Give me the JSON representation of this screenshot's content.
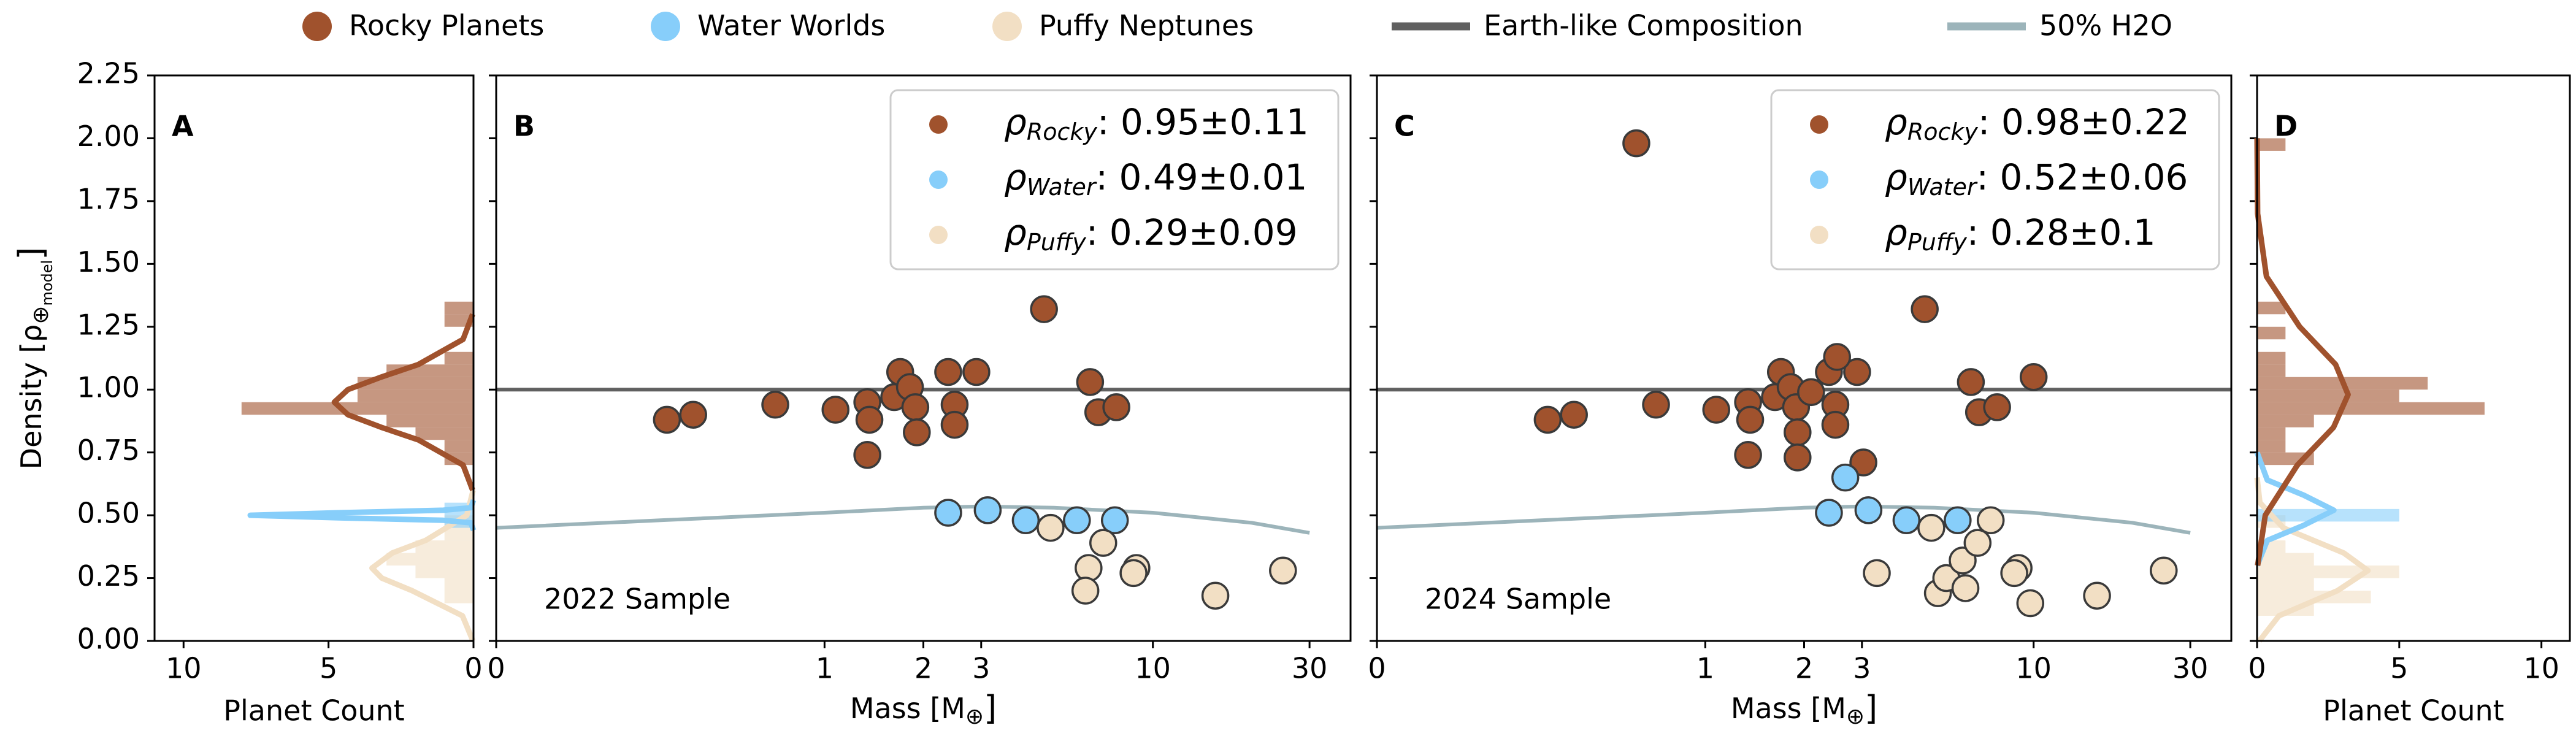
{
  "legend": {
    "items": [
      {
        "name": "Rocky Planets",
        "color": "#a0522d",
        "marker": "circle"
      },
      {
        "name": "Water Worlds",
        "color": "#87cefa",
        "marker": "circle"
      },
      {
        "name": "Puffy Neptunes",
        "color": "#f2dfc4",
        "marker": "circle"
      },
      {
        "name": "Earth-like Composition",
        "color": "#606060",
        "marker": "line"
      },
      {
        "name": "50% H2O",
        "color": "#9cb4ba",
        "marker": "line"
      }
    ]
  },
  "chart_data": [
    {
      "type": "histogram",
      "orientation": "horizontal",
      "panel": "A",
      "xlabel": "Planet Count",
      "xlim": [
        11,
        0
      ],
      "xticks": [
        10,
        5,
        0
      ],
      "ylabel": {
        "main": "Density [ρ",
        "sub": "⊕",
        "subsub": "model",
        "end": "]"
      },
      "ylim": [
        0,
        2.25
      ],
      "yticks": [
        {
          "value": 0,
          "label": "0.00"
        },
        {
          "value": 0.25,
          "label": "0.25"
        },
        {
          "value": 0.5,
          "label": "0.50"
        },
        {
          "value": 0.75,
          "label": "0.75"
        },
        {
          "value": 1,
          "label": "1.00"
        },
        {
          "value": 1.25,
          "label": "1.25"
        },
        {
          "value": 1.5,
          "label": "1.50"
        },
        {
          "value": 1.75,
          "label": "1.75"
        },
        {
          "value": 2,
          "label": "2.00"
        },
        {
          "value": 2.25,
          "label": "2.25"
        }
      ],
      "series": [
        {
          "color": "#f2dfc4",
          "bins": [
            0.15,
            0.2,
            0.25,
            0.3,
            0.35,
            0.4,
            0.45,
            0.5
          ],
          "counts": [
            1,
            1,
            2,
            3,
            2,
            1,
            1
          ],
          "kde_density": [
            0,
            0.1,
            0.2,
            0.25,
            0.29,
            0.35,
            0.4,
            0.5,
            0.6
          ],
          "kde_count": [
            0.02,
            0.38,
            2.12,
            3.16,
            3.5,
            2.8,
            1.65,
            0.23,
            0.01
          ]
        },
        {
          "color": "#87cefa",
          "bins": [
            0.45,
            0.5,
            0.55
          ],
          "counts": [
            1,
            1
          ],
          "kde_density": [
            0.44,
            0.47,
            0.48,
            0.49,
            0.5,
            0.51,
            0.52,
            0.53,
            0.56
          ],
          "kde_count": [
            0,
            0.09,
            1.04,
            4.67,
            7.7,
            4.67,
            1.04,
            0.09,
            0
          ]
        },
        {
          "color": "#a0522d",
          "bins": [
            0.7,
            0.75,
            0.8,
            0.85,
            0.9,
            0.95,
            1.0,
            1.05,
            1.1,
            1.15,
            1.2,
            1.25,
            1.3,
            1.35
          ],
          "counts": [
            1,
            1,
            2,
            3,
            8,
            4,
            4,
            3,
            1,
            0,
            0,
            1,
            1
          ],
          "kde_density": [
            0.6,
            0.7,
            0.8,
            0.85,
            0.9,
            0.95,
            1.0,
            1.05,
            1.1,
            1.2,
            1.3
          ],
          "kde_count": [
            0.03,
            0.36,
            1.9,
            3.18,
            4.33,
            4.8,
            4.33,
            3.18,
            1.9,
            0.36,
            0.03
          ]
        }
      ]
    },
    {
      "type": "scatter",
      "panel": "B",
      "annotation": "2022 Sample",
      "xlabel": {
        "main": "Mass [M",
        "sub": "⊕",
        "end": "]"
      },
      "xscale": "symlog",
      "linthresh": 1,
      "xlim": [
        0,
        40
      ],
      "xticks": [
        0,
        1,
        2,
        3,
        10,
        30
      ],
      "lines": [
        {
          "color": "#606060",
          "x": [
            0,
            40
          ],
          "values": [
            1,
            1
          ]
        },
        {
          "color": "#9cb4ba",
          "x": [
            0,
            0.5,
            1,
            2,
            3,
            5,
            10,
            20,
            30
          ],
          "values": [
            0.45,
            0.48,
            0.51,
            0.53,
            0.535,
            0.53,
            0.51,
            0.47,
            0.43
          ]
        }
      ],
      "series": [
        {
          "color": "#a0522d",
          "label": {
            "symbol": "ρ",
            "sub": "Rocky",
            "text": ": 0.95±0.11"
          },
          "x": [
            0.52,
            0.6,
            0.85,
            1.08,
            1.35,
            1.35,
            1.37,
            1.63,
            1.7,
            1.82,
            1.89,
            1.91,
            2.38,
            2.49,
            2.49,
            2.9,
            4.66,
            6.44,
            6.82,
            7.74
          ],
          "values": [
            0.88,
            0.9,
            0.94,
            0.92,
            0.95,
            0.74,
            0.88,
            0.97,
            1.07,
            1.01,
            0.93,
            0.83,
            1.07,
            0.94,
            0.86,
            1.07,
            1.32,
            1.03,
            0.91,
            0.93
          ]
        },
        {
          "color": "#87cefa",
          "label": {
            "symbol": "ρ",
            "sub": "Water",
            "text": ": 0.49±0.01"
          },
          "x": [
            2.38,
            3.14,
            4.1,
            5.87,
            7.66
          ],
          "values": [
            0.51,
            0.52,
            0.48,
            0.48,
            0.48
          ]
        },
        {
          "color": "#f2dfc4",
          "label": {
            "symbol": "ρ",
            "sub": "Puffy",
            "text": ": 0.29±0.09"
          },
          "x": [
            4.88,
            7.06,
            6.37,
            6.23,
            8.91,
            8.73,
            15.5,
            24.9
          ],
          "values": [
            0.45,
            0.39,
            0.29,
            0.2,
            0.29,
            0.27,
            0.18,
            0.28
          ]
        }
      ]
    },
    {
      "type": "scatter",
      "panel": "C",
      "annotation": "2024 Sample",
      "xlabel": {
        "main": "Mass [M",
        "sub": "⊕",
        "end": "]"
      },
      "xscale": "symlog",
      "linthresh": 1,
      "xlim": [
        0,
        40
      ],
      "xticks": [
        0,
        1,
        2,
        3,
        10,
        30
      ],
      "lines": [
        {
          "color": "#606060",
          "x": [
            0,
            40
          ],
          "values": [
            1,
            1
          ]
        },
        {
          "color": "#9cb4ba",
          "x": [
            0,
            0.5,
            1,
            2,
            3,
            5,
            10,
            20,
            30
          ],
          "values": [
            0.45,
            0.48,
            0.51,
            0.53,
            0.535,
            0.53,
            0.51,
            0.47,
            0.43
          ]
        }
      ],
      "series": [
        {
          "color": "#a0522d",
          "label": {
            "symbol": "ρ",
            "sub": "Rocky",
            "text": ": 0.98±0.22"
          },
          "x": [
            0.52,
            0.6,
            0.85,
            1.08,
            1.35,
            1.35,
            1.37,
            1.63,
            1.7,
            1.82,
            1.89,
            1.91,
            2.38,
            2.49,
            2.49,
            2.9,
            4.66,
            6.44,
            6.82,
            7.74,
            0.79,
            2.52,
            2.1,
            3.03,
            10.0,
            1.91
          ],
          "values": [
            0.88,
            0.9,
            0.94,
            0.92,
            0.95,
            0.74,
            0.88,
            0.97,
            1.07,
            1.01,
            0.93,
            0.83,
            1.07,
            0.94,
            0.86,
            1.07,
            1.32,
            1.03,
            0.91,
            0.93,
            1.98,
            1.13,
            0.99,
            0.71,
            1.05,
            0.73
          ]
        },
        {
          "color": "#87cefa",
          "label": {
            "symbol": "ρ",
            "sub": "Water",
            "text": ": 0.52±0.06"
          },
          "x": [
            2.38,
            2.67,
            3.14,
            4.1,
            5.87
          ],
          "values": [
            0.51,
            0.65,
            0.52,
            0.48,
            0.48
          ]
        },
        {
          "color": "#f2dfc4",
          "label": {
            "symbol": "ρ",
            "sub": "Puffy",
            "text": ": 0.28±0.1"
          },
          "x": [
            3.33,
            4.88,
            5.11,
            5.42,
            6.2,
            6.08,
            6.75,
            7.4,
            9.0,
            8.73,
            9.77,
            15.6,
            24.9
          ],
          "values": [
            0.27,
            0.45,
            0.19,
            0.25,
            0.21,
            0.32,
            0.39,
            0.48,
            0.29,
            0.27,
            0.15,
            0.18,
            0.28
          ]
        }
      ]
    },
    {
      "type": "histogram",
      "orientation": "horizontal",
      "panel": "D",
      "xlabel": "Planet Count",
      "xlim": [
        0,
        11
      ],
      "xticks": [
        0,
        5,
        10
      ],
      "series": [
        {
          "color": "#f2dfc4",
          "bins": [
            0.1,
            0.15,
            0.2,
            0.25,
            0.3,
            0.35,
            0.4,
            0.45,
            0.5
          ],
          "counts": [
            2,
            4,
            2,
            5,
            2,
            1,
            0,
            1
          ],
          "kde_density": [
            0,
            0.1,
            0.2,
            0.28,
            0.35,
            0.45,
            0.55,
            0.65
          ],
          "kde_count": [
            0.08,
            0.77,
            2.83,
            3.9,
            3.05,
            0.92,
            0.1,
            0
          ]
        },
        {
          "color": "#87cefa",
          "bins": [
            0.475,
            0.525
          ],
          "counts": [
            5
          ],
          "kde_density": [
            0.3,
            0.4,
            0.46,
            0.52,
            0.58,
            0.64,
            0.75
          ],
          "kde_count": [
            0,
            0.36,
            1.64,
            2.7,
            1.64,
            0.36,
            0
          ]
        },
        {
          "color": "#a0522d",
          "bins": [
            0.7,
            0.75,
            0.8,
            0.85,
            0.9,
            0.95,
            1.0,
            1.05,
            1.1,
            1.15,
            1.2,
            1.25,
            1.3,
            1.35,
            1.4,
            1.45,
            1.5,
            1.55,
            1.6,
            1.65,
            1.7,
            1.75,
            1.8,
            1.85,
            1.9,
            1.95,
            2.0
          ],
          "counts": [
            2,
            1,
            1,
            2,
            8,
            5,
            6,
            1,
            1,
            0,
            1,
            0,
            1,
            0,
            0,
            0,
            0,
            0,
            0,
            0,
            0,
            0,
            0,
            0,
            0,
            1
          ],
          "kde_density": [
            0.3,
            0.5,
            0.7,
            0.85,
            0.98,
            1.1,
            1.25,
            1.45,
            1.7,
            2.0
          ],
          "kde_count": [
            0.02,
            0.29,
            1.42,
            2.69,
            3.2,
            2.76,
            1.5,
            0.33,
            0.02,
            0
          ]
        }
      ]
    }
  ]
}
